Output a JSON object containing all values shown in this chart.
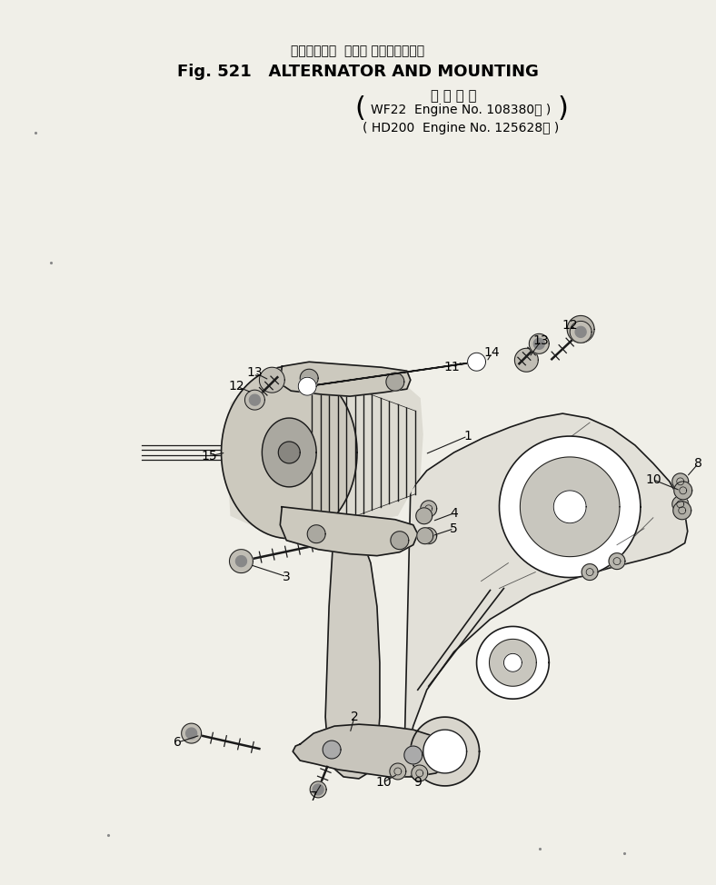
{
  "bg_color": "#f0efe8",
  "text_color": "#000000",
  "line_color": "#1a1a1a",
  "title_japanese": "オルタネータ  および マウンティング",
  "title_main": "Fig. 521   ALTERNATOR AND MOUNTING",
  "subtitle_japanese": "適 用 号 機",
  "subtitle_line1": "WF22  Engine No. 108380～ )",
  "subtitle_line2": "HD200  Engine No. 125628～ )",
  "fig_width": 7.88,
  "fig_height": 9.74,
  "dpi": 100
}
